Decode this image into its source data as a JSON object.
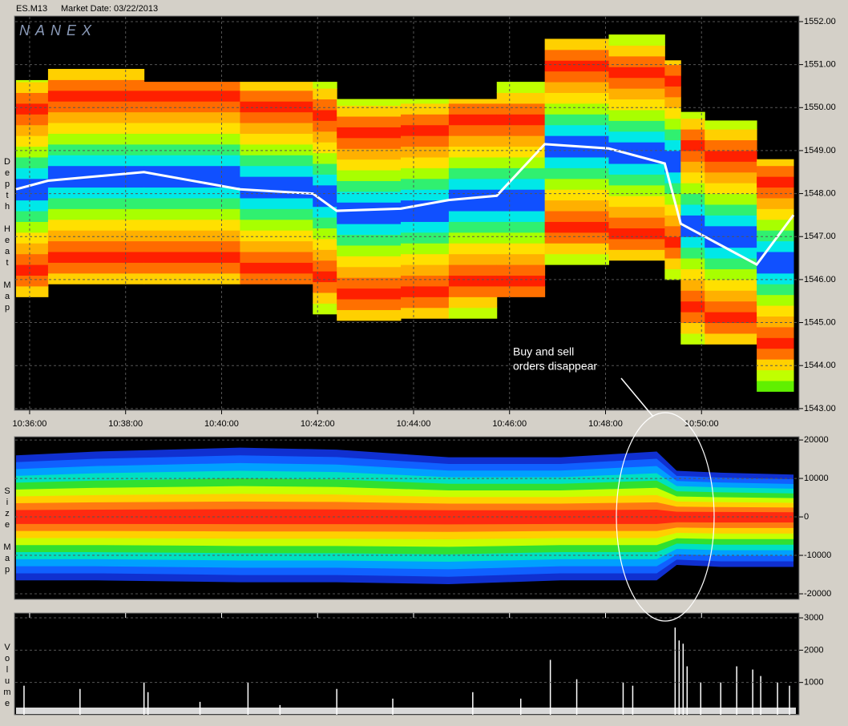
{
  "header": {
    "symbol": "ES.M13",
    "market_date": "Market Date: 03/22/2013",
    "logo": "NANEX"
  },
  "annotation": {
    "lines": [
      "Buy and sell",
      "orders disappear"
    ]
  },
  "chart_data": [
    {
      "type": "heatmap",
      "ylabel": "Depth Heat Map",
      "xlim": [
        38141,
        39122
      ],
      "ylim": [
        1542.96,
        1552.13
      ],
      "xticks": [
        {
          "value": 38160,
          "label": "10:36:00"
        },
        {
          "value": 38280,
          "label": "10:38:00"
        },
        {
          "value": 38400,
          "label": "10:40:00"
        },
        {
          "value": 38520,
          "label": "10:42:00"
        },
        {
          "value": 38640,
          "label": "10:44:00"
        },
        {
          "value": 38760,
          "label": "10:46:00"
        },
        {
          "value": 38880,
          "label": "10:48:00"
        },
        {
          "value": 39000,
          "label": "10:50:00"
        }
      ],
      "yticks": [
        {
          "value": 1552,
          "label": "1552.00"
        },
        {
          "value": 1551,
          "label": "1551.00"
        },
        {
          "value": 1550,
          "label": "1550.00"
        },
        {
          "value": 1549,
          "label": "1549.00"
        },
        {
          "value": 1548,
          "label": "1548.00"
        },
        {
          "value": 1547,
          "label": "1547.00"
        },
        {
          "value": 1546,
          "label": "1546.00"
        },
        {
          "value": 1545,
          "label": "1545.00"
        },
        {
          "value": 1544,
          "label": "1544.00"
        },
        {
          "value": 1543,
          "label": "1543.00"
        }
      ],
      "grid": true,
      "x": [
        38143,
        38183,
        38303,
        38423,
        38514,
        38544,
        38624,
        38684,
        38744,
        38804,
        38884,
        38954,
        38974,
        39004,
        39069,
        39115
      ],
      "top": [
        1550.64,
        1550.9,
        1550.6,
        1550.6,
        1550.6,
        1550.2,
        1550.2,
        1550.2,
        1550.6,
        1551.6,
        1551.7,
        1551.1,
        1549.9,
        1549.7,
        1548.8,
        1549.8
      ],
      "bottom": [
        1545.6,
        1545.9,
        1545.9,
        1545.9,
        1545.2,
        1545.05,
        1545.1,
        1545.1,
        1545.6,
        1546.35,
        1546.45,
        1546.0,
        1544.5,
        1544.5,
        1543.4,
        1544.7
      ],
      "mid": [
        1548.1,
        1548.3,
        1548.5,
        1548.1,
        1548.0,
        1547.6,
        1547.65,
        1547.85,
        1547.95,
        1549.15,
        1549.05,
        1548.7,
        1547.3,
        1547.0,
        1546.35,
        1547.5
      ],
      "mid_color": "#ffffff"
    },
    {
      "type": "band",
      "ylabel": "Size Map",
      "ylim": [
        -21450,
        20850
      ],
      "yticks": [
        20000,
        10000,
        0,
        -10000,
        -20000
      ],
      "x": [
        38143,
        38243,
        38423,
        38544,
        38684,
        38824,
        38944,
        38969,
        39024,
        39115
      ],
      "upper": [
        16000,
        17000,
        18000,
        17500,
        15500,
        15500,
        17000,
        12000,
        11500,
        11000
      ],
      "lower": [
        -16500,
        -16500,
        -17000,
        -17000,
        -17500,
        -16500,
        -16500,
        -12500,
        -13000,
        -13000
      ],
      "colors": [
        "#ff2a10",
        "#ff7a10",
        "#ffd000",
        "#c8ff00",
        "#30e030",
        "#00e0c0",
        "#00a0ff",
        "#1060ff",
        "#1030d0"
      ]
    },
    {
      "type": "bar",
      "ylabel": "Volume",
      "ylim": [
        0,
        3150
      ],
      "yticks": [
        3000,
        2000,
        1000
      ],
      "color": "#ffffff",
      "x": [
        38153,
        38223,
        38303,
        38308,
        38373,
        38433,
        38473,
        38544,
        38614,
        38714,
        38774,
        38811,
        38844,
        38902,
        38914,
        38967,
        38972,
        38977,
        38982,
        38999,
        39024,
        39044,
        39064,
        39074,
        39095,
        39110
      ],
      "values": [
        900,
        800,
        1000,
        700,
        400,
        1000,
        300,
        800,
        500,
        700,
        500,
        1700,
        1100,
        1000,
        900,
        2700,
        2300,
        2200,
        1500,
        1000,
        1000,
        1500,
        1400,
        1200,
        1000,
        900
      ]
    }
  ]
}
